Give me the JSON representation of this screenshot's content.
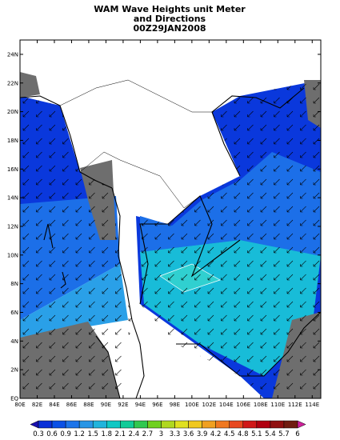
{
  "title": [
    "WAM Wave Heights unit Meter",
    "and Directions",
    "00Z29JAN2008"
  ],
  "lat_labels": [
    "EQ",
    "2N",
    "4N",
    "6N",
    "8N",
    "10N",
    "12N",
    "14N",
    "16N",
    "18N",
    "20N",
    "22N",
    "24N"
  ],
  "lon_labels": [
    "80E",
    "82E",
    "84E",
    "86E",
    "88E",
    "90E",
    "92E",
    "94E",
    "96E",
    "98E",
    "100E",
    "102E",
    "104E",
    "106E",
    "108E",
    "110E",
    "112E",
    "114E"
  ],
  "legend": {
    "labels": [
      "0.3",
      "0.6",
      "0.9",
      "1.2",
      "1.5",
      "1.8",
      "2.1",
      "2.4",
      "2.7",
      "3",
      "3.3",
      "3.6",
      "3.9",
      "4.2",
      "4.5",
      "4.8",
      "5.1",
      "5.4",
      "5.7",
      "6"
    ],
    "colors": [
      "#1a10b0",
      "#0a30d8",
      "#0a50e6",
      "#1c74ea",
      "#2896e6",
      "#20b4dc",
      "#10c8c4",
      "#10cc98",
      "#30c850",
      "#70d020",
      "#b0d820",
      "#e0e020",
      "#f0c820",
      "#f0a020",
      "#f07820",
      "#e84820",
      "#d01818",
      "#b00010",
      "#901010",
      "#701c10",
      "#d0209c"
    ]
  }
}
